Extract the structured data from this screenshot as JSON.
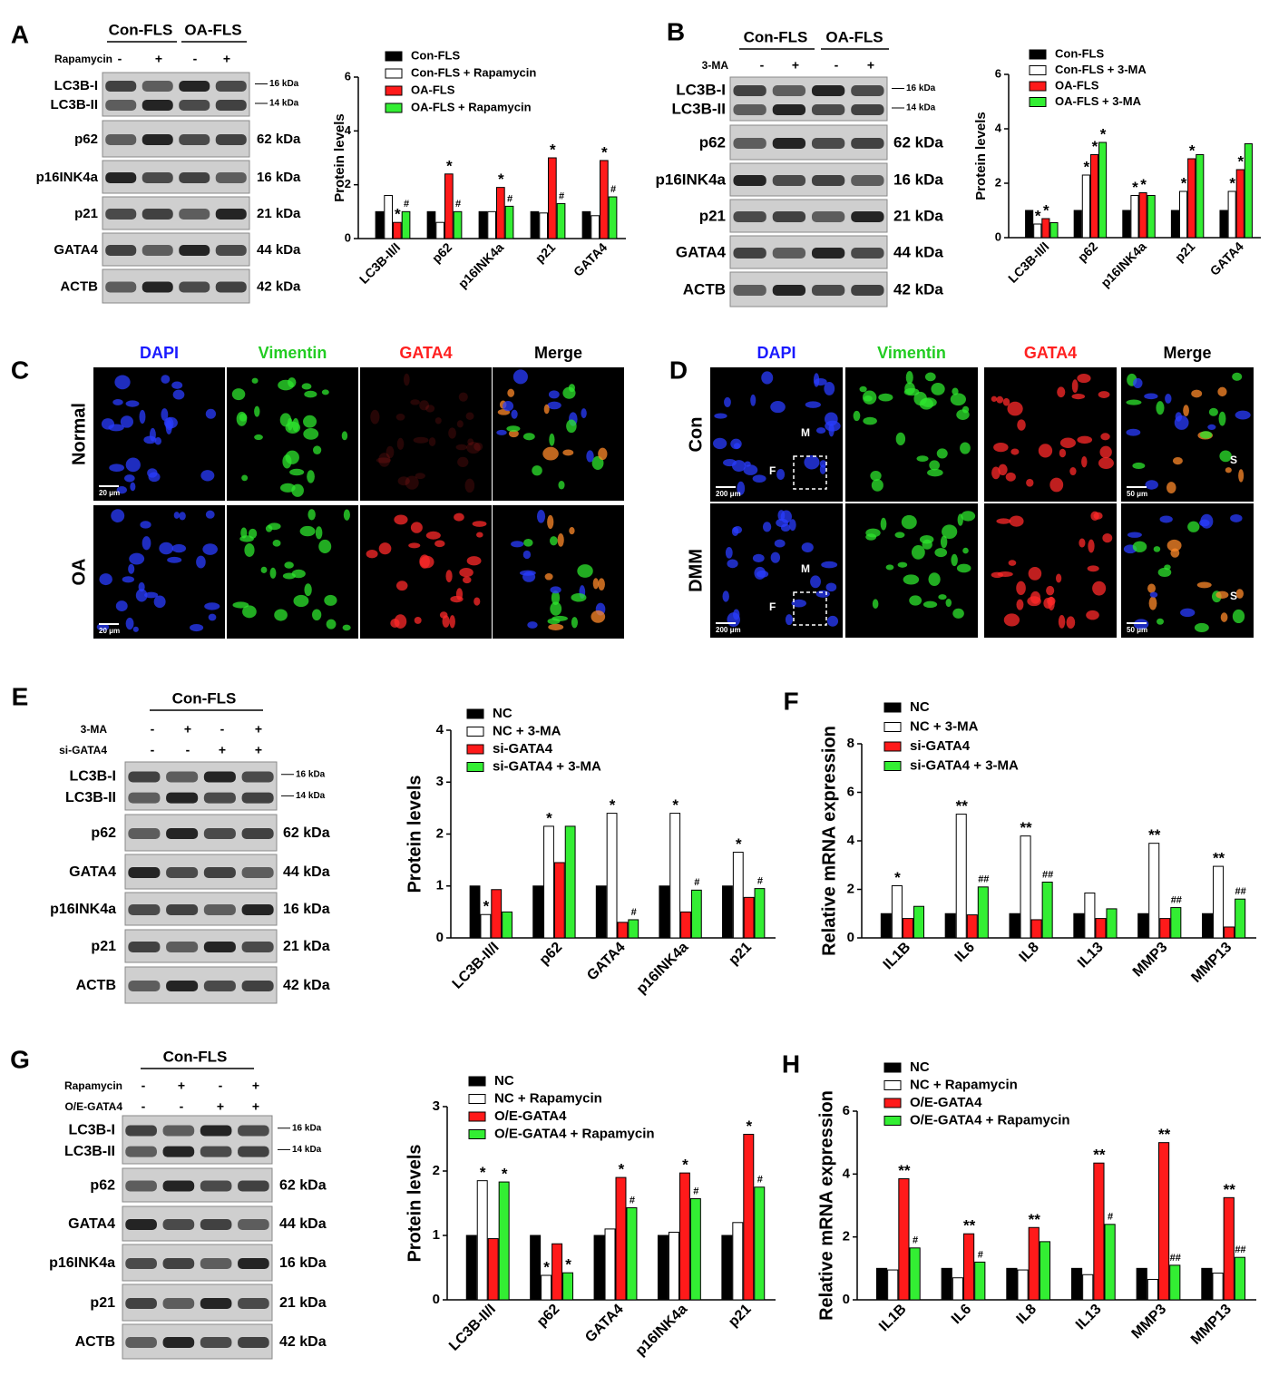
{
  "letters": [
    "A",
    "B",
    "C",
    "D",
    "E",
    "F",
    "G",
    "H"
  ],
  "blots": [
    {
      "header": [
        "Con-FLS",
        "OA-FLS"
      ],
      "treatments": [
        {
          "name": "Rapamycin",
          "signs": [
            "-",
            "+",
            "-",
            "+"
          ]
        }
      ],
      "rows": [
        {
          "labels": [
            "LC3B-I",
            "LC3B-II"
          ],
          "kda": [
            "16 kDa",
            "14 kDa"
          ]
        },
        {
          "labels": [
            "p62"
          ],
          "kda": [
            "62 kDa"
          ]
        },
        {
          "labels": [
            "p16INK4a"
          ],
          "kda": [
            "16 kDa"
          ]
        },
        {
          "labels": [
            "p21"
          ],
          "kda": [
            "21 kDa"
          ]
        },
        {
          "labels": [
            "GATA4"
          ],
          "kda": [
            "44 kDa"
          ]
        },
        {
          "labels": [
            "ACTB"
          ],
          "kda": [
            "42 kDa"
          ]
        }
      ]
    },
    {
      "header": [
        "Con-FLS",
        "OA-FLS"
      ],
      "treatments": [
        {
          "name": "3-MA",
          "signs": [
            "-",
            "+",
            "-",
            "+"
          ]
        }
      ],
      "rows": [
        {
          "labels": [
            "LC3B-I",
            "LC3B-II"
          ],
          "kda": [
            "16 kDa",
            "14 kDa"
          ]
        },
        {
          "labels": [
            "p62"
          ],
          "kda": [
            "62 kDa"
          ]
        },
        {
          "labels": [
            "p16INK4a"
          ],
          "kda": [
            "16 kDa"
          ]
        },
        {
          "labels": [
            "p21"
          ],
          "kda": [
            "21 kDa"
          ]
        },
        {
          "labels": [
            "GATA4"
          ],
          "kda": [
            "44 kDa"
          ]
        },
        {
          "labels": [
            "ACTB"
          ],
          "kda": [
            "42 kDa"
          ]
        }
      ]
    },
    {
      "header": [
        "Con-FLS"
      ],
      "treatments": [
        {
          "name": "3-MA",
          "signs": [
            "-",
            "+",
            "-",
            "+"
          ]
        },
        {
          "name": "si-GATA4",
          "signs": [
            "-",
            "-",
            "+",
            "+"
          ]
        }
      ],
      "rows": [
        {
          "labels": [
            "LC3B-I",
            "LC3B-II"
          ],
          "kda": [
            "16 kDa",
            "14 kDa"
          ]
        },
        {
          "labels": [
            "p62"
          ],
          "kda": [
            "62 kDa"
          ]
        },
        {
          "labels": [
            "GATA4"
          ],
          "kda": [
            "44 kDa"
          ]
        },
        {
          "labels": [
            "p16INK4a"
          ],
          "kda": [
            "16 kDa"
          ]
        },
        {
          "labels": [
            "p21"
          ],
          "kda": [
            "21 kDa"
          ]
        },
        {
          "labels": [
            "ACTB"
          ],
          "kda": [
            "42 kDa"
          ]
        }
      ]
    },
    {
      "header": [
        "Con-FLS"
      ],
      "treatments": [
        {
          "name": "Rapamycin",
          "signs": [
            "-",
            "+",
            "-",
            "+"
          ]
        },
        {
          "name": "O/E-GATA4",
          "signs": [
            "-",
            "-",
            "+",
            "+"
          ]
        }
      ],
      "rows": [
        {
          "labels": [
            "LC3B-I",
            "LC3B-II"
          ],
          "kda": [
            "16 kDa",
            "14 kDa"
          ]
        },
        {
          "labels": [
            "p62"
          ],
          "kda": [
            "62 kDa"
          ]
        },
        {
          "labels": [
            "GATA4"
          ],
          "kda": [
            "44 kDa"
          ]
        },
        {
          "labels": [
            "p16INK4a"
          ],
          "kda": [
            "16 kDa"
          ]
        },
        {
          "labels": [
            "p21"
          ],
          "kda": [
            "21 kDa"
          ]
        },
        {
          "labels": [
            "ACTB"
          ],
          "kda": [
            "42 kDa"
          ]
        }
      ]
    }
  ],
  "images": [
    {
      "columns": [
        "DAPI",
        "Vimentin",
        "GATA4",
        "Merge"
      ],
      "column_colors": [
        "#1a1aff",
        "#22cc22",
        "#ff2020",
        "#000000"
      ],
      "rows": [
        {
          "label": "Normal",
          "scale": "20 μm"
        },
        {
          "label": "OA",
          "scale": "20 μm"
        }
      ]
    },
    {
      "columns": [
        "DAPI",
        "Vimentin",
        "GATA4",
        "Merge"
      ],
      "column_colors": [
        "#1a1aff",
        "#22cc22",
        "#ff2020",
        "#000000"
      ],
      "rows": [
        {
          "label": "Con",
          "marks": [
            "F",
            "M",
            "S"
          ],
          "scales": [
            "200 μm",
            "50 μm"
          ]
        },
        {
          "label": "DMM",
          "marks": [
            "F",
            "M",
            "S"
          ],
          "scales": [
            "200 μm",
            "50 μm"
          ]
        }
      ]
    }
  ],
  "chart_data": [
    {
      "type": "bar",
      "ylabel": "Protein levels",
      "categories": [
        "LC3B-II/I",
        "p62",
        "p16INK4a",
        "p21",
        "GATA4"
      ],
      "ylim": [
        0,
        6
      ],
      "yticks": [
        0,
        2,
        4,
        6
      ],
      "series": [
        {
          "name": "Con-FLS",
          "color": "#000000",
          "values": [
            1.0,
            1.0,
            1.0,
            1.0,
            1.0
          ],
          "sig": [
            null,
            null,
            null,
            null,
            null
          ]
        },
        {
          "name": "Con-FLS + Rapamycin",
          "color": "#ffffff",
          "values": [
            1.6,
            0.6,
            1.0,
            0.95,
            0.85
          ],
          "sig": [
            null,
            null,
            null,
            null,
            null
          ]
        },
        {
          "name": "OA-FLS",
          "color": "#ff1a1a",
          "values": [
            0.6,
            2.4,
            1.9,
            3.0,
            2.9
          ],
          "sig": [
            "*",
            "*",
            "*",
            "*",
            "*"
          ]
        },
        {
          "name": "OA-FLS + Rapamycin",
          "color": "#33ee33",
          "values": [
            1.0,
            1.0,
            1.2,
            1.3,
            1.55
          ],
          "sig": [
            "#",
            "#",
            "#",
            "#",
            "#"
          ]
        }
      ]
    },
    {
      "type": "bar",
      "ylabel": "Protein levels",
      "categories": [
        "LC3B-II/I",
        "p62",
        "p16INK4a",
        "p21",
        "GATA4"
      ],
      "ylim": [
        0,
        6
      ],
      "yticks": [
        0,
        2,
        4,
        6
      ],
      "series": [
        {
          "name": "Con-FLS",
          "color": "#000000",
          "values": [
            1.0,
            1.0,
            1.0,
            1.0,
            1.0
          ],
          "sig": [
            null,
            null,
            null,
            null,
            null
          ]
        },
        {
          "name": "Con-FLS + 3-MA",
          "color": "#ffffff",
          "values": [
            0.5,
            2.3,
            1.55,
            1.7,
            1.7
          ],
          "sig": [
            "*",
            "*",
            "*",
            "*",
            "*"
          ]
        },
        {
          "name": "OA-FLS",
          "color": "#ff1a1a",
          "values": [
            0.7,
            3.05,
            1.65,
            2.9,
            2.5
          ],
          "sig": [
            "*",
            "*",
            "*",
            "*",
            "*"
          ]
        },
        {
          "name": "OA-FLS + 3-MA",
          "color": "#33ee33",
          "values": [
            0.55,
            3.5,
            1.55,
            3.05,
            3.45
          ],
          "sig": [
            null,
            "*",
            null,
            null,
            null
          ]
        }
      ]
    },
    {
      "type": "bar",
      "ylabel": "Protein levels",
      "categories": [
        "LC3B-II/I",
        "p62",
        "GATA4",
        "p16INK4a",
        "p21"
      ],
      "ylim": [
        0,
        4
      ],
      "yticks": [
        0,
        1,
        2,
        3,
        4
      ],
      "series": [
        {
          "name": "NC",
          "color": "#000000",
          "values": [
            1.0,
            1.0,
            1.0,
            1.0,
            1.0
          ],
          "sig": [
            null,
            null,
            null,
            null,
            null
          ]
        },
        {
          "name": "NC + 3-MA",
          "color": "#ffffff",
          "values": [
            0.45,
            2.15,
            2.4,
            2.4,
            1.65
          ],
          "sig": [
            "*",
            "*",
            "*",
            "*",
            "*"
          ]
        },
        {
          "name": "si-GATA4",
          "color": "#ff1a1a",
          "values": [
            0.93,
            1.45,
            0.3,
            0.5,
            0.78
          ],
          "sig": [
            null,
            null,
            null,
            null,
            null
          ]
        },
        {
          "name": "si-GATA4 + 3-MA",
          "color": "#33ee33",
          "values": [
            0.5,
            2.15,
            0.35,
            0.92,
            0.95
          ],
          "sig": [
            null,
            null,
            "#",
            "#",
            "#"
          ]
        }
      ]
    },
    {
      "type": "bar",
      "ylabel": "Relative mRNA expression",
      "categories": [
        "IL1B",
        "IL6",
        "IL8",
        "IL13",
        "MMP3",
        "MMP13"
      ],
      "ylim": [
        0,
        8
      ],
      "yticks": [
        0,
        2,
        4,
        6,
        8
      ],
      "series": [
        {
          "name": "NC",
          "color": "#000000",
          "values": [
            1.0,
            1.0,
            1.0,
            1.0,
            1.0,
            1.0
          ],
          "sig": [
            null,
            null,
            null,
            null,
            null,
            null
          ]
        },
        {
          "name": "NC + 3-MA",
          "color": "#ffffff",
          "values": [
            2.15,
            5.1,
            4.2,
            1.85,
            3.9,
            2.95
          ],
          "sig": [
            "*",
            "**",
            "**",
            null,
            "**",
            "**"
          ]
        },
        {
          "name": "si-GATA4",
          "color": "#ff1a1a",
          "values": [
            0.8,
            0.95,
            0.75,
            0.8,
            0.8,
            0.45
          ],
          "sig": [
            null,
            null,
            null,
            null,
            null,
            null
          ]
        },
        {
          "name": "si-GATA4 + 3-MA",
          "color": "#33ee33",
          "values": [
            1.3,
            2.1,
            2.3,
            1.2,
            1.25,
            1.6
          ],
          "sig": [
            null,
            "##",
            "##",
            null,
            "##",
            "##"
          ]
        }
      ]
    },
    {
      "type": "bar",
      "ylabel": "Protein levels",
      "categories": [
        "LC3B-II/I",
        "p62",
        "GATA4",
        "p16INK4a",
        "p21"
      ],
      "ylim": [
        0,
        3
      ],
      "yticks": [
        0,
        1,
        2,
        3
      ],
      "series": [
        {
          "name": "NC",
          "color": "#000000",
          "values": [
            1.0,
            1.0,
            1.0,
            1.0,
            1.0
          ],
          "sig": [
            null,
            null,
            null,
            null,
            null
          ]
        },
        {
          "name": "NC + Rapamycin",
          "color": "#ffffff",
          "values": [
            1.85,
            0.38,
            1.1,
            1.05,
            1.2
          ],
          "sig": [
            "*",
            "*",
            null,
            null,
            null
          ]
        },
        {
          "name": "O/E-GATA4",
          "color": "#ff1a1a",
          "values": [
            0.95,
            0.87,
            1.9,
            1.97,
            2.57
          ],
          "sig": [
            null,
            null,
            "*",
            "*",
            "*"
          ]
        },
        {
          "name": "O/E-GATA4 + Rapamycin",
          "color": "#33ee33",
          "values": [
            1.83,
            0.42,
            1.43,
            1.57,
            1.75
          ],
          "sig": [
            "*",
            "*",
            "#",
            "#",
            "#"
          ]
        }
      ]
    },
    {
      "type": "bar",
      "ylabel": "Relative mRNA expression",
      "categories": [
        "IL1B",
        "IL6",
        "IL8",
        "IL13",
        "MMP3",
        "MMP13"
      ],
      "ylim": [
        0,
        6
      ],
      "yticks": [
        0,
        2,
        4,
        6
      ],
      "series": [
        {
          "name": "NC",
          "color": "#000000",
          "values": [
            1.0,
            1.0,
            1.0,
            1.0,
            1.0,
            1.0
          ],
          "sig": [
            null,
            null,
            null,
            null,
            null,
            null
          ]
        },
        {
          "name": "NC + Rapamycin",
          "color": "#ffffff",
          "values": [
            0.95,
            0.7,
            0.95,
            0.8,
            0.65,
            0.85
          ],
          "sig": [
            null,
            null,
            null,
            null,
            null,
            null
          ]
        },
        {
          "name": "O/E-GATA4",
          "color": "#ff1a1a",
          "values": [
            3.85,
            2.1,
            2.3,
            4.35,
            5.0,
            3.25
          ],
          "sig": [
            "**",
            "**",
            "**",
            "**",
            "**",
            "**"
          ]
        },
        {
          "name": "O/E-GATA4 + Rapamycin",
          "color": "#33ee33",
          "values": [
            1.65,
            1.2,
            1.85,
            2.4,
            1.1,
            1.35
          ],
          "sig": [
            "#",
            "#",
            null,
            "#",
            "##",
            "##"
          ]
        }
      ]
    }
  ]
}
